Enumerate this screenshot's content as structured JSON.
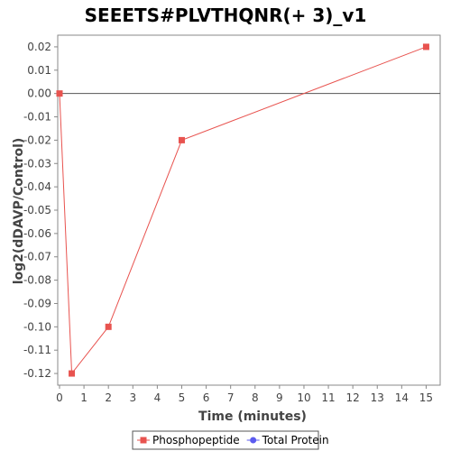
{
  "chart_data": {
    "type": "line",
    "title": "SEEETS#PLVTHQNR(+ 3)_v1",
    "xlabel": "Time (minutes)",
    "ylabel": "log2(dDAVP/Control)",
    "xlim": [
      0,
      15.5
    ],
    "ylim": [
      -0.125,
      0.025
    ],
    "x_ticks": [
      0,
      1,
      2,
      3,
      4,
      5,
      6,
      7,
      8,
      9,
      10,
      11,
      12,
      13,
      14,
      15
    ],
    "y_ticks": [
      0.02,
      0.01,
      0.0,
      -0.01,
      -0.02,
      -0.03,
      -0.04,
      -0.05,
      -0.06,
      -0.07,
      -0.08,
      -0.09,
      -0.1,
      -0.11,
      -0.12
    ],
    "y_tick_labels": [
      "0.02",
      "0.01",
      "0.00",
      "-0.01",
      "-0.02",
      "-0.03",
      "-0.04",
      "-0.05",
      "-0.06",
      "-0.07",
      "-0.08",
      "-0.09",
      "-0.10",
      "-0.11",
      "-0.12"
    ],
    "zero_line": true,
    "grid": false,
    "legend_position": "bottom",
    "series": [
      {
        "name": "Phosphopeptide",
        "color": "#e8534f",
        "marker": "square",
        "x": [
          0,
          0.5,
          2,
          5,
          15
        ],
        "y": [
          0.0,
          -0.12,
          -0.1,
          -0.02,
          0.02
        ]
      },
      {
        "name": "Total Protein",
        "color": "#5b5bef",
        "marker": "circle",
        "x": [],
        "y": []
      }
    ]
  }
}
